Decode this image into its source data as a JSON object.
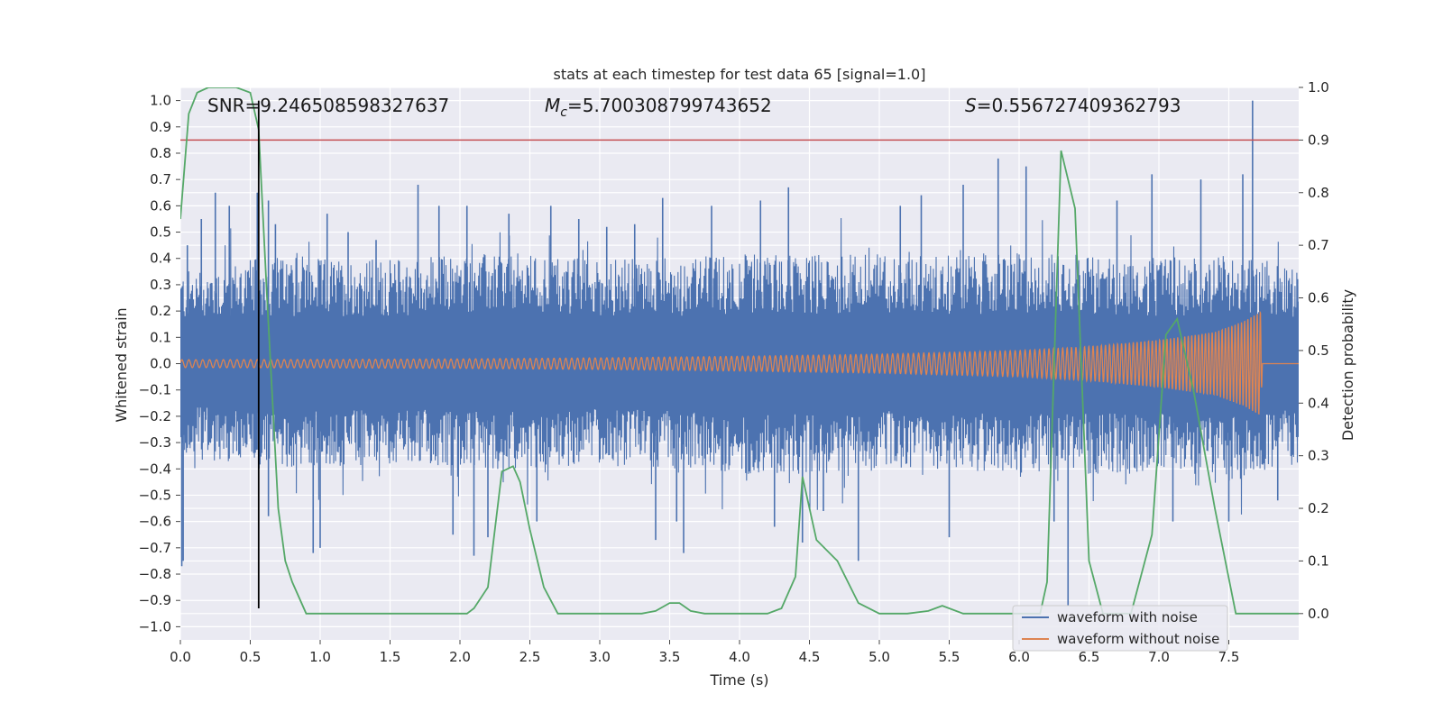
{
  "chart_data": {
    "type": "line",
    "title": "stats at each timestep for test data 65 [signal=1.0]",
    "xlabel": "Time (s)",
    "ylabel_left": "Whitened strain",
    "ylabel_right": "Detection probability",
    "xlim": [
      0.0,
      8.0
    ],
    "ylim_left": [
      -1.05,
      1.05
    ],
    "ylim_right": [
      -0.05,
      1.0
    ],
    "x_ticks": [
      "0.0",
      "0.5",
      "1.0",
      "1.5",
      "2.0",
      "2.5",
      "3.0",
      "3.5",
      "4.0",
      "4.5",
      "5.0",
      "5.5",
      "6.0",
      "6.5",
      "7.0",
      "7.5"
    ],
    "y_left_ticks": [
      "1.0",
      "0.9",
      "0.8",
      "0.7",
      "0.6",
      "0.5",
      "0.4",
      "0.3",
      "0.2",
      "0.1",
      "0.0",
      "−0.1",
      "−0.2",
      "−0.3",
      "−0.4",
      "−0.5",
      "−0.6",
      "−0.7",
      "−0.8",
      "−0.9",
      "−1.0"
    ],
    "y_right_ticks": [
      "1.0",
      "0.9",
      "0.8",
      "0.7",
      "0.6",
      "0.5",
      "0.4",
      "0.3",
      "0.2",
      "0.1",
      "0.0"
    ],
    "annotations": {
      "snr": "SNR=9.246508598327637",
      "mc_symbol": "M",
      "mc_sub": "c",
      "mc_value": "=5.700308799743652",
      "s_symbol": "S",
      "s_value": "=0.556727409362793"
    },
    "threshold": 0.9,
    "marker_time": 0.56,
    "legend": {
      "placement": "bottom-right",
      "entries": [
        "waveform with noise",
        "waveform without noise"
      ]
    },
    "colors": {
      "noise": "#4c72b0",
      "clean": "#dd8452",
      "probability": "#55a868",
      "threshold": "#c44e52",
      "marker": "#000000",
      "background": "#eaeaf2",
      "grid": "#ffffff"
    },
    "series": [
      {
        "name": "waveform with noise",
        "axis": "left",
        "envelope_upper": [
          [
            0,
            0.35
          ],
          [
            0.5,
            0.4
          ],
          [
            1.0,
            0.4
          ],
          [
            1.5,
            0.4
          ],
          [
            2.0,
            0.42
          ],
          [
            2.5,
            0.42
          ],
          [
            3.0,
            0.4
          ],
          [
            3.5,
            0.4
          ],
          [
            4.0,
            0.42
          ],
          [
            4.5,
            0.42
          ],
          [
            5.0,
            0.42
          ],
          [
            5.5,
            0.42
          ],
          [
            6.0,
            0.42
          ],
          [
            6.5,
            0.42
          ],
          [
            7.0,
            0.4
          ],
          [
            7.5,
            0.42
          ],
          [
            8.0,
            0.38
          ]
        ],
        "envelope_lower": [
          [
            0,
            -0.35
          ],
          [
            0.5,
            -0.4
          ],
          [
            1.0,
            -0.4
          ],
          [
            1.5,
            -0.38
          ],
          [
            2.0,
            -0.4
          ],
          [
            2.5,
            -0.4
          ],
          [
            3.0,
            -0.38
          ],
          [
            3.5,
            -0.4
          ],
          [
            4.0,
            -0.42
          ],
          [
            4.5,
            -0.42
          ],
          [
            5.0,
            -0.4
          ],
          [
            5.5,
            -0.4
          ],
          [
            6.0,
            -0.42
          ],
          [
            6.5,
            -0.42
          ],
          [
            7.0,
            -0.42
          ],
          [
            7.5,
            -0.45
          ],
          [
            8.0,
            -0.38
          ]
        ],
        "spikes": [
          [
            0.01,
            -0.77
          ],
          [
            0.02,
            -0.75
          ],
          [
            0.05,
            0.45
          ],
          [
            0.15,
            0.55
          ],
          [
            0.25,
            0.65
          ],
          [
            0.35,
            0.6
          ],
          [
            0.55,
            0.65
          ],
          [
            0.63,
            -0.58
          ],
          [
            0.63,
            0.62
          ],
          [
            0.68,
            0.53
          ],
          [
            0.95,
            -0.72
          ],
          [
            1.0,
            -0.7
          ],
          [
            1.05,
            0.57
          ],
          [
            1.2,
            0.5
          ],
          [
            1.4,
            0.47
          ],
          [
            1.7,
            0.68
          ],
          [
            1.85,
            0.6
          ],
          [
            1.95,
            -0.65
          ],
          [
            2.05,
            0.6
          ],
          [
            2.1,
            -0.73
          ],
          [
            2.2,
            -0.66
          ],
          [
            2.35,
            0.57
          ],
          [
            2.55,
            -0.6
          ],
          [
            2.65,
            0.6
          ],
          [
            2.85,
            0.55
          ],
          [
            3.05,
            0.52
          ],
          [
            3.25,
            0.53
          ],
          [
            3.4,
            -0.67
          ],
          [
            3.45,
            0.63
          ],
          [
            3.55,
            -0.6
          ],
          [
            3.6,
            -0.72
          ],
          [
            3.8,
            0.6
          ],
          [
            4.15,
            0.62
          ],
          [
            4.25,
            -0.62
          ],
          [
            4.35,
            0.67
          ],
          [
            4.45,
            -0.68
          ],
          [
            4.6,
            -0.56
          ],
          [
            4.85,
            -0.75
          ],
          [
            5.15,
            0.6
          ],
          [
            5.3,
            0.64
          ],
          [
            5.5,
            -0.66
          ],
          [
            5.6,
            0.68
          ],
          [
            5.85,
            0.78
          ],
          [
            6.05,
            0.75
          ],
          [
            6.25,
            -0.6
          ],
          [
            6.35,
            -0.92
          ],
          [
            6.7,
            0.62
          ],
          [
            6.95,
            0.72
          ],
          [
            7.1,
            -0.6
          ],
          [
            7.3,
            0.7
          ],
          [
            7.5,
            -0.6
          ],
          [
            7.6,
            0.72
          ],
          [
            7.67,
            1.0
          ],
          [
            7.85,
            -0.52
          ]
        ]
      },
      {
        "name": "waveform without noise",
        "axis": "left",
        "amplitude": [
          [
            0,
            0.015
          ],
          [
            1,
            0.016
          ],
          [
            2,
            0.018
          ],
          [
            3,
            0.022
          ],
          [
            4,
            0.028
          ],
          [
            5,
            0.036
          ],
          [
            6,
            0.05
          ],
          [
            6.5,
            0.065
          ],
          [
            7,
            0.09
          ],
          [
            7.4,
            0.12
          ],
          [
            7.6,
            0.16
          ],
          [
            7.73,
            0.2
          ],
          [
            7.74,
            0.0
          ],
          [
            8.0,
            0.0
          ]
        ],
        "frequency_hz": [
          [
            0,
            20
          ],
          [
            6,
            28
          ],
          [
            7.7,
            45
          ]
        ]
      },
      {
        "name": "detection probability",
        "axis": "right",
        "x": [
          0.0,
          0.06,
          0.12,
          0.2,
          0.3,
          0.4,
          0.5,
          0.56,
          0.62,
          0.7,
          0.75,
          0.8,
          0.9,
          1.0,
          1.5,
          2.0,
          2.05,
          2.1,
          2.2,
          2.3,
          2.38,
          2.43,
          2.5,
          2.6,
          2.7,
          3.0,
          3.3,
          3.4,
          3.5,
          3.57,
          3.65,
          3.75,
          4.0,
          4.2,
          4.3,
          4.4,
          4.45,
          4.55,
          4.7,
          4.85,
          5.0,
          5.2,
          5.35,
          5.45,
          5.6,
          6.0,
          6.15,
          6.2,
          6.3,
          6.4,
          6.5,
          6.6,
          6.8,
          6.95,
          7.05,
          7.13,
          7.25,
          7.4,
          7.55,
          8.0
        ],
        "values": [
          0.75,
          0.95,
          0.99,
          1.0,
          1.0,
          1.0,
          0.99,
          0.92,
          0.6,
          0.2,
          0.1,
          0.06,
          0.0,
          0.0,
          0.0,
          0.0,
          0.0,
          0.01,
          0.05,
          0.27,
          0.28,
          0.25,
          0.16,
          0.05,
          0.0,
          0.0,
          0.0,
          0.005,
          0.02,
          0.02,
          0.005,
          0.0,
          0.0,
          0.0,
          0.01,
          0.07,
          0.26,
          0.14,
          0.1,
          0.02,
          0.0,
          0.0,
          0.005,
          0.015,
          0.0,
          0.0,
          0.0,
          0.06,
          0.88,
          0.77,
          0.1,
          0.0,
          0.0,
          0.15,
          0.53,
          0.56,
          0.42,
          0.2,
          0.0,
          0.0
        ]
      }
    ]
  }
}
